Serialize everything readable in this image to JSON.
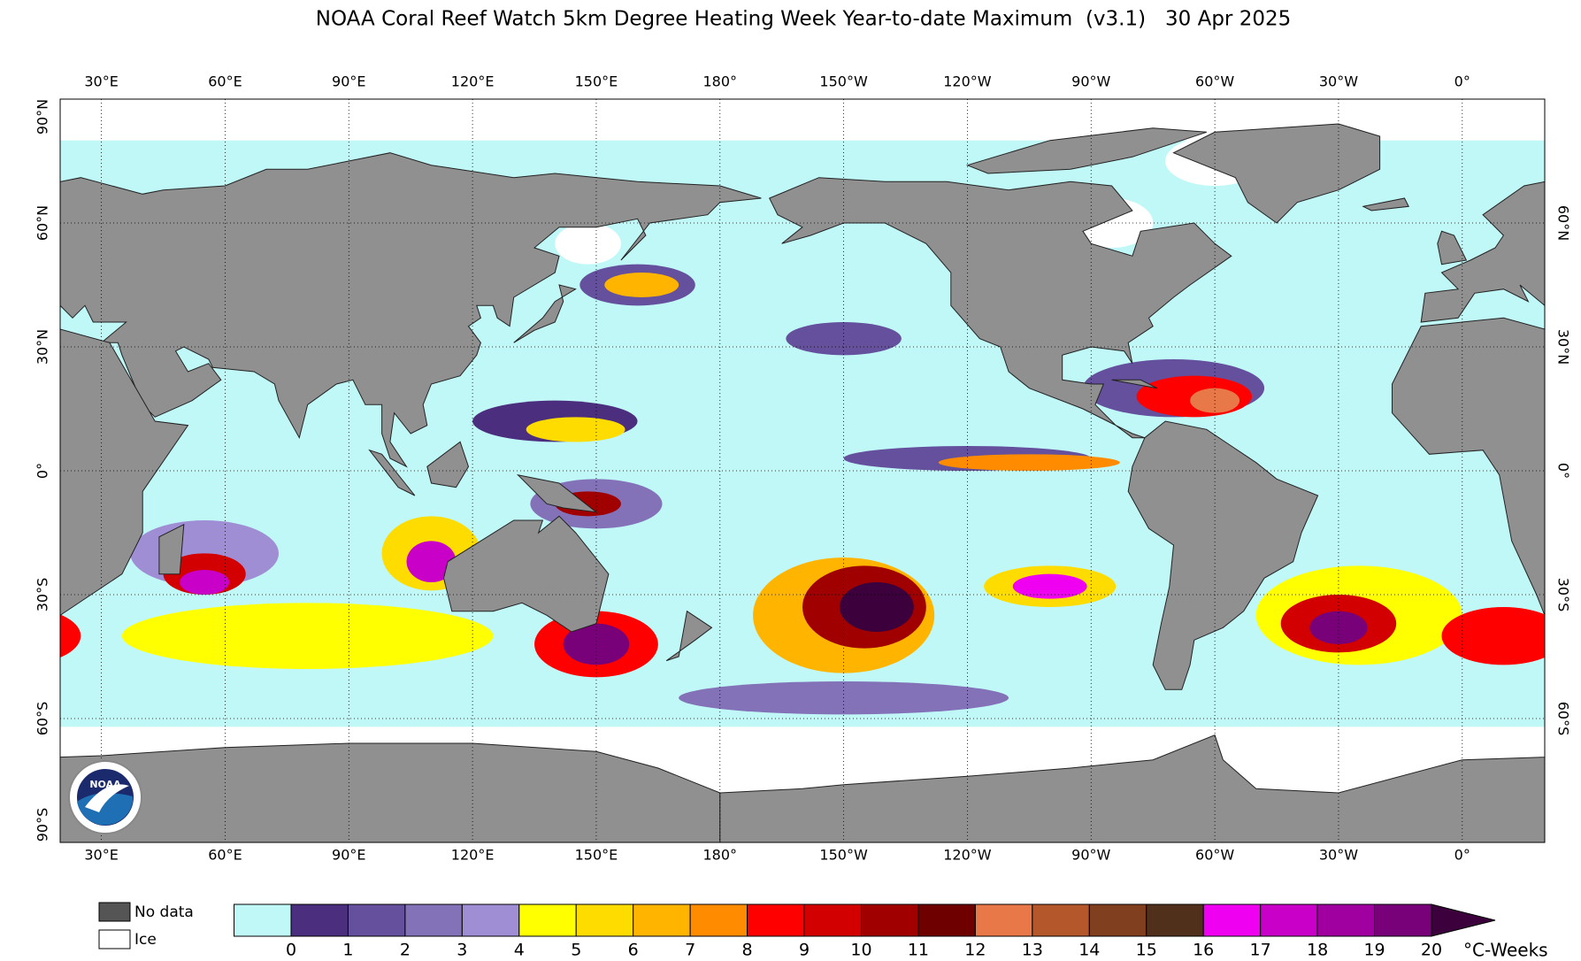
{
  "title": "NOAA Coral Reef Watch 5km Degree Heating Week Year-to-date Maximum  (v3.1)   30 Apr 2025",
  "map": {
    "longitude_labels": [
      "30°E",
      "60°E",
      "90°E",
      "120°E",
      "150°E",
      "180°",
      "150°W",
      "120°W",
      "90°W",
      "60°W",
      "30°W",
      "0°"
    ],
    "latitude_labels": [
      "90°N",
      "60°N",
      "30°N",
      "0°",
      "30°S",
      "60°S",
      "90°S"
    ],
    "logo_text": "NOAA"
  },
  "legend": {
    "no_data": "No data",
    "ice": "Ice",
    "no_data_color": "#555555",
    "ice_color": "#ffffff"
  },
  "colorbar": {
    "unit": "°C-Weeks",
    "ticks": [
      0,
      1,
      2,
      3,
      4,
      5,
      6,
      7,
      8,
      9,
      10,
      11,
      12,
      13,
      14,
      15,
      16,
      17,
      18,
      19,
      20
    ],
    "colors": [
      "#c0f8f8",
      "#4b2e7e",
      "#64509c",
      "#8472b8",
      "#a08ed4",
      "#ffff00",
      "#ffdc00",
      "#ffb400",
      "#ff8c00",
      "#ff0000",
      "#d20000",
      "#a00000",
      "#6e0000",
      "#e87848",
      "#b4582c",
      "#804020",
      "#50301a",
      "#f000f0",
      "#c800c8",
      "#a000a0",
      "#780078",
      "#3c003c"
    ]
  }
}
